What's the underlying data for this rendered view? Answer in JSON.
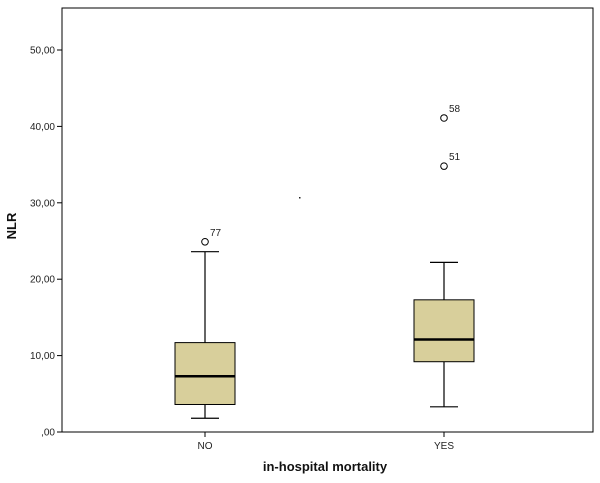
{
  "chart_data": {
    "type": "boxplot",
    "title": "",
    "xlabel": "in-hospital mortality",
    "ylabel": "NLR",
    "ylim": [
      0,
      55
    ],
    "yticks": [
      {
        "value": 0,
        "label": ",00"
      },
      {
        "value": 10,
        "label": "10,00"
      },
      {
        "value": 20,
        "label": "20,00"
      },
      {
        "value": 30,
        "label": "30,00"
      },
      {
        "value": 40,
        "label": "40,00"
      },
      {
        "value": 50,
        "label": "50,00"
      }
    ],
    "grid": false,
    "box_color": "#d8cf9b",
    "categories": [
      "NO",
      "YES"
    ],
    "boxes": [
      {
        "category": "NO",
        "whisker_low": 1.8,
        "q1": 3.6,
        "median": 7.3,
        "q3": 11.7,
        "whisker_high": 23.6,
        "outliers": [
          {
            "value": 24.9,
            "label": "77"
          }
        ]
      },
      {
        "category": "YES",
        "whisker_low": 3.3,
        "q1": 9.2,
        "median": 12.1,
        "q3": 17.3,
        "whisker_high": 22.2,
        "outliers": [
          {
            "value": 41.1,
            "label": "58"
          },
          {
            "value": 34.8,
            "label": "51"
          }
        ]
      }
    ]
  }
}
